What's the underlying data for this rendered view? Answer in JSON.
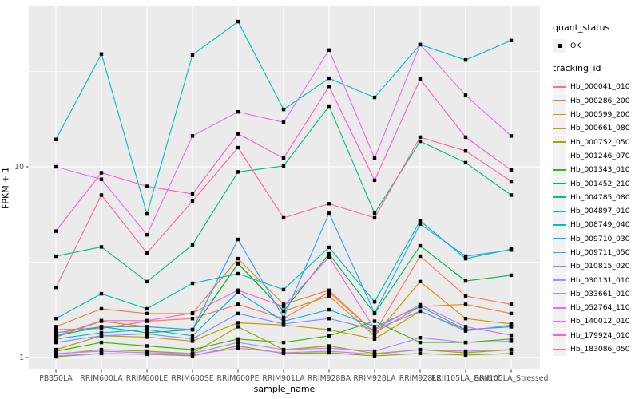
{
  "legend": {
    "quant_status_title": "quant_status",
    "quant_status_label": "OK",
    "tracking_id_title": "tracking_id"
  },
  "chart_data": {
    "type": "line",
    "title": "",
    "xlabel": "sample_name",
    "ylabel": "FPKM + 1",
    "y_scale": "log10",
    "y_ticks": [
      10,
      1
    ],
    "ylim": [
      0.87,
      70
    ],
    "grid": true,
    "legend_position": "right",
    "panel_bg": "#EBEBEB",
    "grid_color": "#FFFFFF",
    "point_color": "#000000",
    "tick_label_color": "#4D4D4D",
    "categories": [
      "PB350LA",
      "RRIM600LA",
      "RRIM600LE",
      "RRIM600SE",
      "RRIM600PE",
      "RRIM901LA",
      "RRIM928BA",
      "RRIM928LA",
      "RRIM928LE",
      "RRII105LA_Control",
      "RRII105LA_Stressed"
    ],
    "series": [
      {
        "name": "Hb_000041_010",
        "color": "#F8766D",
        "values": [
          1.4,
          1.42,
          1.55,
          1.6,
          1.9,
          1.6,
          2.2,
          1.35,
          3.4,
          2.1,
          1.9
        ]
      },
      {
        "name": "Hb_000286_200",
        "color": "#EA8331",
        "values": [
          1.45,
          1.8,
          1.7,
          1.7,
          3.3,
          1.9,
          2.25,
          1.35,
          1.85,
          1.9,
          1.7
        ]
      },
      {
        "name": "Hb_000599_200",
        "color": "#D89000",
        "values": [
          1.28,
          1.55,
          1.45,
          1.4,
          3.1,
          1.75,
          2.1,
          1.3,
          2.5,
          1.6,
          1.5
        ]
      },
      {
        "name": "Hb_000661_080",
        "color": "#C09B00",
        "values": [
          1.1,
          1.3,
          1.28,
          1.22,
          1.52,
          1.48,
          1.4,
          1.25,
          1.75,
          1.4,
          1.45
        ]
      },
      {
        "name": "Hb_000752_050",
        "color": "#A3A500",
        "values": [
          1.04,
          1.1,
          1.08,
          1.05,
          1.45,
          1.1,
          1.15,
          1.05,
          1.1,
          1.06,
          1.1
        ]
      },
      {
        "name": "Hb_001246_070",
        "color": "#7CAE00",
        "values": [
          1.01,
          1.05,
          1.04,
          1.02,
          1.15,
          1.05,
          1.06,
          1.02,
          1.05,
          1.03,
          1.05
        ]
      },
      {
        "name": "Hb_001343_010",
        "color": "#39B600",
        "values": [
          1.08,
          1.2,
          1.15,
          1.1,
          1.25,
          1.2,
          1.3,
          1.55,
          1.2,
          1.2,
          1.25
        ]
      },
      {
        "name": "Hb_001452_210",
        "color": "#00BB4E",
        "values": [
          1.3,
          1.45,
          1.35,
          1.4,
          3.12,
          1.75,
          3.5,
          1.7,
          3.85,
          2.52,
          2.7
        ]
      },
      {
        "name": "Hb_004785_080",
        "color": "#00C087",
        "values": [
          3.4,
          3.8,
          2.5,
          3.9,
          9.4,
          10.1,
          20.8,
          5.7,
          13.6,
          10.5,
          7.1
        ]
      },
      {
        "name": "Hb_004897_010",
        "color": "#00C0B2",
        "values": [
          1.6,
          2.16,
          1.8,
          2.45,
          2.75,
          2.27,
          3.78,
          1.96,
          5.2,
          3.3,
          3.7
        ]
      },
      {
        "name": "Hb_008749_040",
        "color": "#00BFC4",
        "values": [
          13.9,
          39.0,
          5.66,
          38.6,
          57.7,
          20.0,
          29.1,
          23.1,
          43.7,
          36.3,
          45.9
        ]
      },
      {
        "name": "Hb_009710_030",
        "color": "#00B5EC",
        "values": [
          1.25,
          1.35,
          1.4,
          1.3,
          2.2,
          1.55,
          1.78,
          1.45,
          1.85,
          1.4,
          1.45
        ]
      },
      {
        "name": "Hb_009711_050",
        "color": "#2FA3FF",
        "values": [
          1.35,
          1.45,
          1.45,
          1.4,
          4.16,
          1.62,
          5.7,
          1.71,
          5.0,
          3.4,
          3.66
        ]
      },
      {
        "name": "Hb_010815_020",
        "color": "#7E8EFF",
        "values": [
          1.2,
          1.3,
          1.33,
          1.25,
          1.7,
          1.5,
          1.6,
          1.4,
          1.75,
          1.38,
          1.48
        ]
      },
      {
        "name": "Hb_030131_010",
        "color": "#AE87FF",
        "values": [
          1.05,
          1.08,
          1.06,
          1.05,
          1.2,
          1.1,
          1.12,
          1.08,
          1.27,
          1.2,
          1.22
        ]
      },
      {
        "name": "Hb_033661_010",
        "color": "#D277FF",
        "values": [
          1.02,
          1.05,
          1.04,
          1.03,
          1.12,
          1.06,
          1.08,
          1.04,
          1.1,
          1.08,
          1.1
        ]
      },
      {
        "name": "Hb_052764_110",
        "color": "#E86EF4",
        "values": [
          10.0,
          8.6,
          4.4,
          14.5,
          19.4,
          17.1,
          40.9,
          11.1,
          43.7,
          23.7,
          14.5
        ]
      },
      {
        "name": "Hb_140012_010",
        "color": "#F564E4",
        "values": [
          1.3,
          1.56,
          1.56,
          1.71,
          2.25,
          1.85,
          3.37,
          1.41,
          1.89,
          1.45,
          1.31
        ]
      },
      {
        "name": "Hb_179924_010",
        "color": "#FC61CF",
        "values": [
          4.6,
          9.3,
          7.9,
          7.2,
          14.9,
          11.1,
          26.4,
          8.5,
          28.8,
          14.3,
          9.6
        ]
      },
      {
        "name": "Hb_183086_050",
        "color": "#FF689E",
        "values": [
          2.33,
          7.1,
          3.53,
          6.6,
          12.6,
          5.4,
          6.4,
          5.4,
          14.3,
          12.1,
          8.4
        ]
      }
    ]
  }
}
